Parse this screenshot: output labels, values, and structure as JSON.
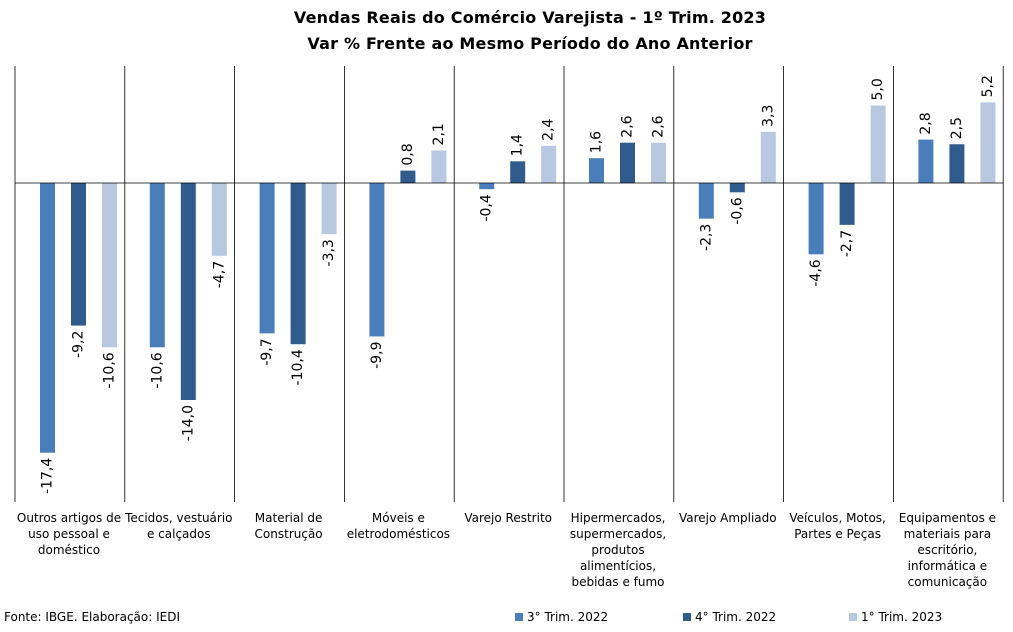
{
  "chart_data": {
    "type": "bar",
    "title": "Vendas Reais do Comércio Varejista - 1º Trim. 2023",
    "subtitle": "Var % Frente ao Mesmo Período do Ano Anterior",
    "categories": [
      "Outros artigos de uso pessoal e doméstico",
      "Tecidos, vestuário e calçados",
      "Material de Construção",
      "Móveis e eletrodomésticos",
      "Varejo Restrito",
      "Hipermercados, supermercados, produtos alimentícios, bebidas e fumo",
      "Varejo Ampliado",
      "Veículos, Motos, Partes e Peças",
      "Equipamentos e materiais para escritório, informática e comunicação"
    ],
    "category_lines": [
      [
        "Outros artigos de",
        "uso pessoal e",
        "doméstico"
      ],
      [
        "Tecidos, vestuário",
        "e calçados"
      ],
      [
        "Material de",
        "Construção"
      ],
      [
        "Móveis e",
        "eletrodomésticos"
      ],
      [
        "Varejo Restrito"
      ],
      [
        "Hipermercados,",
        "supermercados,",
        "produtos",
        "alimentícios,",
        "bebidas e fumo"
      ],
      [
        "Varejo Ampliado"
      ],
      [
        "Veículos, Motos,",
        "Partes e Peças"
      ],
      [
        "Equipamentos e",
        "materiais para",
        "escritório,",
        "informática e",
        "comunicação"
      ]
    ],
    "series": [
      {
        "name": "3° Trim. 2022",
        "color": "#4a7ebb",
        "values": [
          -17.4,
          -10.6,
          -9.7,
          -9.9,
          -0.4,
          1.6,
          -2.3,
          -4.6,
          2.8
        ],
        "labels": [
          "-17,4",
          "-10,6",
          "-9,7",
          "-9,9",
          "-0,4",
          "1,6",
          "-2,3",
          "-4,6",
          "2,8"
        ]
      },
      {
        "name": "4° Trim. 2022",
        "color": "#2f5b8d",
        "values": [
          -9.2,
          -14.0,
          -10.4,
          0.8,
          1.4,
          2.6,
          -0.6,
          -2.7,
          2.5
        ],
        "labels": [
          "-9,2",
          "-14,0",
          "-10,4",
          "0,8",
          "1,4",
          "2,6",
          "-0,6",
          "-2,7",
          "2,5"
        ]
      },
      {
        "name": "1° Trim. 2023",
        "color": "#b9c8e1",
        "values": [
          -10.6,
          -4.7,
          -3.3,
          2.1,
          2.4,
          2.6,
          3.3,
          5.0,
          5.2
        ],
        "labels": [
          "-10,6",
          "-4,7",
          "-3,3",
          "2,1",
          "2,4",
          "2,6",
          "3,3",
          "5,0",
          "5,2"
        ]
      }
    ],
    "grid": false,
    "legend_position": "bottom-right"
  },
  "source": "Fonte: IBGE. Elaboração: IEDI"
}
